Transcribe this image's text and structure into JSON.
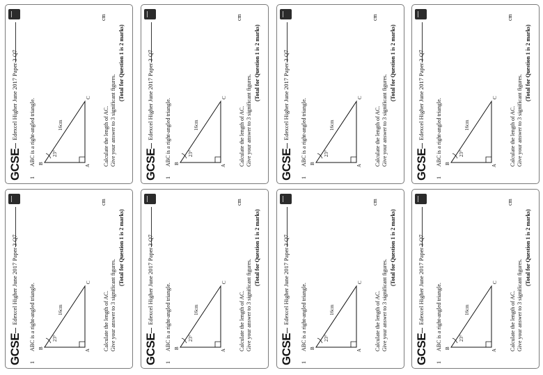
{
  "cards": [
    {
      "title": "GCSE",
      "source": "Edexcel Higher June 2017 Paper 3 Q7",
      "number": "1",
      "intro": "ABC is a right-angled triangle.",
      "side_label": "16cm",
      "angle_label": "23°",
      "vertices": [
        "A",
        "B",
        "C"
      ],
      "instructions": [
        "Calculate the length of AC.",
        "Give your answer to 3 significant figures."
      ],
      "answer_unit": "cm",
      "total": "(Total for Question 1 is 2 marks)"
    },
    {
      "title": "GCSE",
      "source": "Edexcel Higher June 2017 Paper 3 Q7",
      "number": "1",
      "intro": "ABC is a right-angled triangle.",
      "side_label": "16cm",
      "angle_label": "23°",
      "vertices": [
        "A",
        "B",
        "C"
      ],
      "instructions": [
        "Calculate the length of AC.",
        "Give your answer to 3 significant figures."
      ],
      "answer_unit": "cm",
      "total": "(Total for Question 1 is 2 marks)"
    }
  ],
  "colors": {
    "border": "#7a7a7a",
    "logo": "#2b2b2b",
    "text": "#111111"
  },
  "icons": {
    "logo": "exam-board-logo-icon"
  }
}
